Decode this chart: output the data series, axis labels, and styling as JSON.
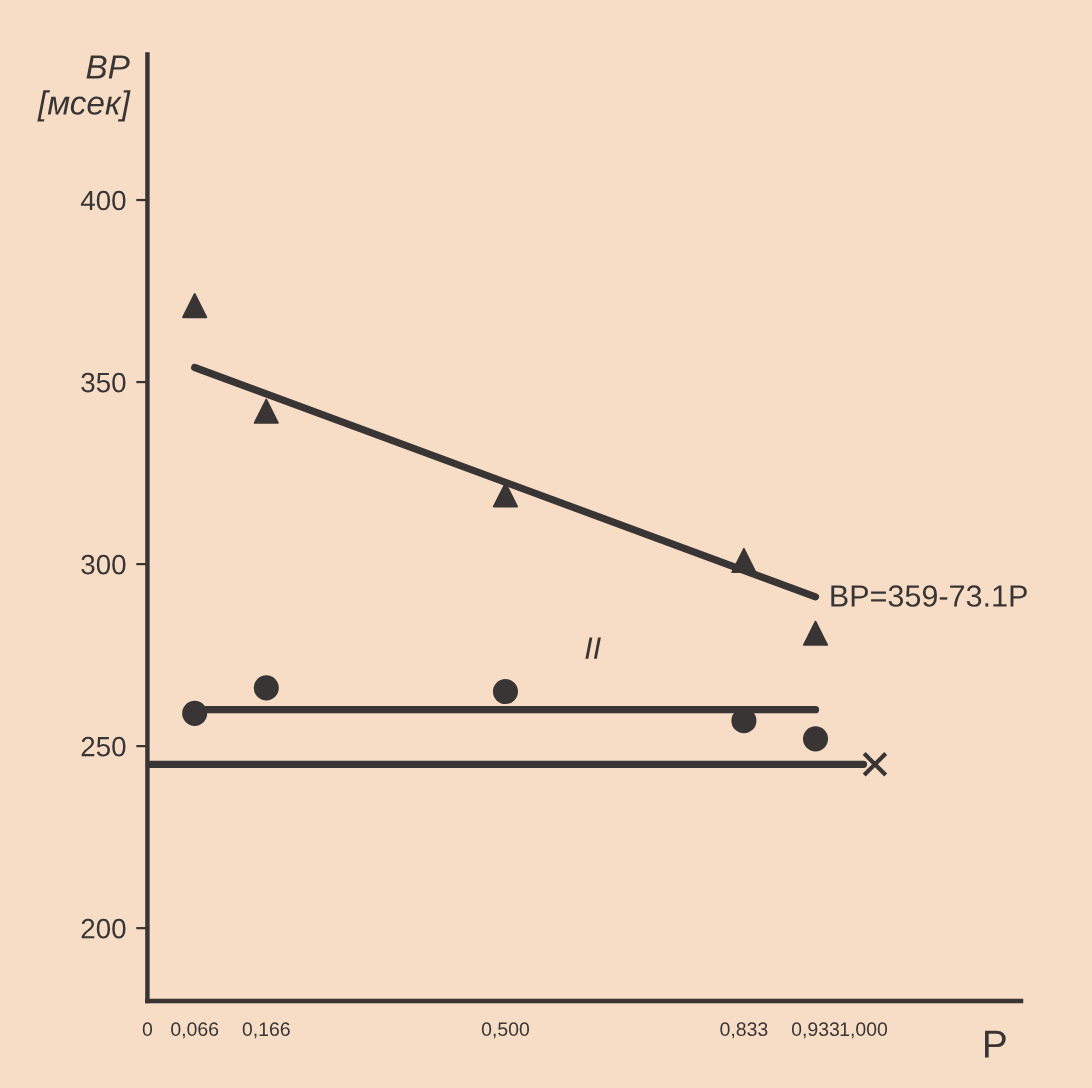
{
  "chart_data": {
    "type": "scatter",
    "xlabel": "P",
    "ylabel": "ВР\n[мсек]",
    "xlim": [
      0,
      1.22
    ],
    "ylim": [
      180,
      440
    ],
    "xticks": [
      {
        "value": 0,
        "label": "0"
      },
      {
        "value": 0.066,
        "label": "0,066"
      },
      {
        "value": 0.166,
        "label": "0,166"
      },
      {
        "value": 0.5,
        "label": "0,500"
      },
      {
        "value": 0.833,
        "label": "0,833"
      },
      {
        "value": 0.933,
        "label": "0,933"
      },
      {
        "value": 1.0,
        "label": "1,000"
      }
    ],
    "yticks": [
      200,
      250,
      300,
      350,
      400
    ],
    "grid": false,
    "legend": false,
    "series": [
      {
        "marker": "triangle",
        "color": "#3a3535",
        "x": [
          0.066,
          0.166,
          0.5,
          0.833,
          0.933
        ],
        "values": [
          371,
          342,
          319,
          301,
          281
        ]
      },
      {
        "marker": "circle",
        "color": "#3a3535",
        "x": [
          0.066,
          0.166,
          0.5,
          0.833,
          0.933
        ],
        "values": [
          259,
          266,
          265,
          257,
          252
        ]
      },
      {
        "type": "line",
        "marker": "none",
        "color": "#3a3535",
        "x": [
          0.066,
          0.933
        ],
        "values": [
          354,
          291
        ]
      },
      {
        "type": "line",
        "marker": "none",
        "color": "#3a3535",
        "x": [
          0.066,
          0.933
        ],
        "values": [
          260,
          260
        ]
      },
      {
        "type": "line",
        "marker": "none",
        "color": "#3a3535",
        "x": [
          0,
          1.0
        ],
        "values": [
          245,
          245
        ]
      },
      {
        "marker": "cross",
        "color": "#3a3535",
        "x": [
          1.016
        ],
        "values": [
          245
        ]
      }
    ],
    "annotations": [
      "ВР=359-73.1Р",
      "II"
    ]
  }
}
